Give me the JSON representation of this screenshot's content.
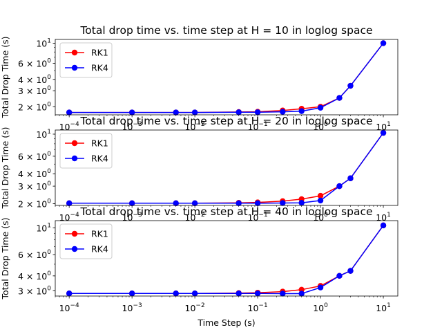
{
  "chart_data": [
    {
      "type": "line",
      "title": "Total drop time vs. time step at H = 10 in loglog space",
      "xlabel": "",
      "ylabel": "Total Drop Time (s)",
      "xscale": "log",
      "yscale": "log",
      "xlim": [
        6e-05,
        17
      ],
      "ylim": [
        1.63,
        11.0
      ],
      "xticks": [
        {
          "value": 0.0001,
          "base": "10",
          "exp": "−4"
        },
        {
          "value": 0.001,
          "base": "10",
          "exp": "−3"
        },
        {
          "value": 0.01,
          "base": "10",
          "exp": "−2"
        },
        {
          "value": 0.1,
          "base": "10",
          "exp": "−1"
        },
        {
          "value": 1,
          "base": "10",
          "exp": "0"
        },
        {
          "value": 10,
          "base": "10",
          "exp": "1"
        }
      ],
      "yticks": [
        {
          "value": 2,
          "base": "2 × 10",
          "exp": "0"
        },
        {
          "value": 3,
          "base": "3 × 10",
          "exp": "0"
        },
        {
          "value": 4,
          "base": "4 × 10",
          "exp": "0"
        },
        {
          "value": 6,
          "base": "6 × 10",
          "exp": "0"
        },
        {
          "value": 10,
          "base": "10",
          "exp": "1"
        }
      ],
      "legend": "top-left",
      "grid": false,
      "series": [
        {
          "name": "RK1",
          "color": "#ff0000",
          "x": [
            0.0001,
            0.001,
            0.005,
            0.01,
            0.05,
            0.1,
            0.25,
            0.5,
            1,
            2,
            3,
            10
          ],
          "y": [
            1.73,
            1.73,
            1.73,
            1.73,
            1.75,
            1.76,
            1.82,
            1.9,
            2.0,
            2.5,
            3.4,
            10.0
          ]
        },
        {
          "name": "RK4",
          "color": "#0000ff",
          "x": [
            0.0001,
            0.001,
            0.005,
            0.01,
            0.05,
            0.1,
            0.25,
            0.5,
            1,
            2,
            3,
            10
          ],
          "y": [
            1.73,
            1.73,
            1.73,
            1.73,
            1.74,
            1.74,
            1.76,
            1.79,
            1.95,
            2.5,
            3.4,
            10.0
          ]
        }
      ]
    },
    {
      "type": "line",
      "title": "Total drop time vs. time step at H = 20 in loglog space",
      "xlabel": "",
      "ylabel": "Total Drop Time (s)",
      "xscale": "log",
      "yscale": "log",
      "xlim": [
        6e-05,
        17
      ],
      "ylim": [
        1.92,
        11.0
      ],
      "xticks": [
        {
          "value": 0.0001,
          "base": "10",
          "exp": "−4"
        },
        {
          "value": 0.001,
          "base": "10",
          "exp": "−3"
        },
        {
          "value": 0.01,
          "base": "10",
          "exp": "−2"
        },
        {
          "value": 0.1,
          "base": "10",
          "exp": "−1"
        },
        {
          "value": 1,
          "base": "10",
          "exp": "0"
        },
        {
          "value": 10,
          "base": "10",
          "exp": "1"
        }
      ],
      "yticks": [
        {
          "value": 2,
          "base": "2 × 10",
          "exp": "0"
        },
        {
          "value": 3,
          "base": "3 × 10",
          "exp": "0"
        },
        {
          "value": 4,
          "base": "4 × 10",
          "exp": "0"
        },
        {
          "value": 6,
          "base": "6 × 10",
          "exp": "0"
        },
        {
          "value": 10,
          "base": "10",
          "exp": "1"
        }
      ],
      "legend": "top-left",
      "grid": false,
      "series": [
        {
          "name": "RK1",
          "color": "#ff0000",
          "x": [
            0.0001,
            0.001,
            0.005,
            0.01,
            0.05,
            0.1,
            0.25,
            0.5,
            1,
            2,
            3,
            10
          ],
          "y": [
            2.02,
            2.02,
            2.02,
            2.02,
            2.04,
            2.06,
            2.12,
            2.22,
            2.4,
            3.0,
            3.6,
            10.3
          ]
        },
        {
          "name": "RK4",
          "color": "#0000ff",
          "x": [
            0.0001,
            0.001,
            0.005,
            0.01,
            0.05,
            0.1,
            0.25,
            0.5,
            1,
            2,
            3,
            10
          ],
          "y": [
            2.02,
            2.02,
            2.02,
            2.02,
            2.02,
            2.02,
            2.03,
            2.04,
            2.15,
            3.0,
            3.6,
            10.3
          ]
        }
      ]
    },
    {
      "type": "line",
      "title": "Total drop time vs. time step at H = 40 in loglog space",
      "xlabel": "Time Step (s)",
      "ylabel": "Total Drop Time (s)",
      "xscale": "log",
      "yscale": "log",
      "xlim": [
        6e-05,
        17
      ],
      "ylim": [
        2.72,
        11.5
      ],
      "xticks": [
        {
          "value": 0.0001,
          "base": "10",
          "exp": "−4"
        },
        {
          "value": 0.001,
          "base": "10",
          "exp": "−3"
        },
        {
          "value": 0.01,
          "base": "10",
          "exp": "−2"
        },
        {
          "value": 0.1,
          "base": "10",
          "exp": "−1"
        },
        {
          "value": 1,
          "base": "10",
          "exp": "0"
        },
        {
          "value": 10,
          "base": "10",
          "exp": "1"
        }
      ],
      "yticks": [
        {
          "value": 3,
          "base": "3 × 10",
          "exp": "0"
        },
        {
          "value": 4,
          "base": "4 × 10",
          "exp": "0"
        },
        {
          "value": 6,
          "base": "6 × 10",
          "exp": "0"
        },
        {
          "value": 10,
          "base": "10",
          "exp": "1"
        }
      ],
      "legend": "top-left",
      "grid": false,
      "series": [
        {
          "name": "RK1",
          "color": "#ff0000",
          "x": [
            0.0001,
            0.001,
            0.005,
            0.01,
            0.05,
            0.1,
            0.25,
            0.5,
            1,
            2,
            3,
            10
          ],
          "y": [
            2.86,
            2.86,
            2.86,
            2.86,
            2.88,
            2.9,
            2.96,
            3.07,
            3.3,
            4.0,
            4.4,
            10.5
          ]
        },
        {
          "name": "RK4",
          "color": "#0000ff",
          "x": [
            0.0001,
            0.001,
            0.005,
            0.01,
            0.05,
            0.1,
            0.25,
            0.5,
            1,
            2,
            3,
            10
          ],
          "y": [
            2.86,
            2.86,
            2.86,
            2.86,
            2.86,
            2.86,
            2.85,
            2.85,
            3.2,
            4.0,
            4.4,
            10.5
          ]
        }
      ]
    }
  ]
}
